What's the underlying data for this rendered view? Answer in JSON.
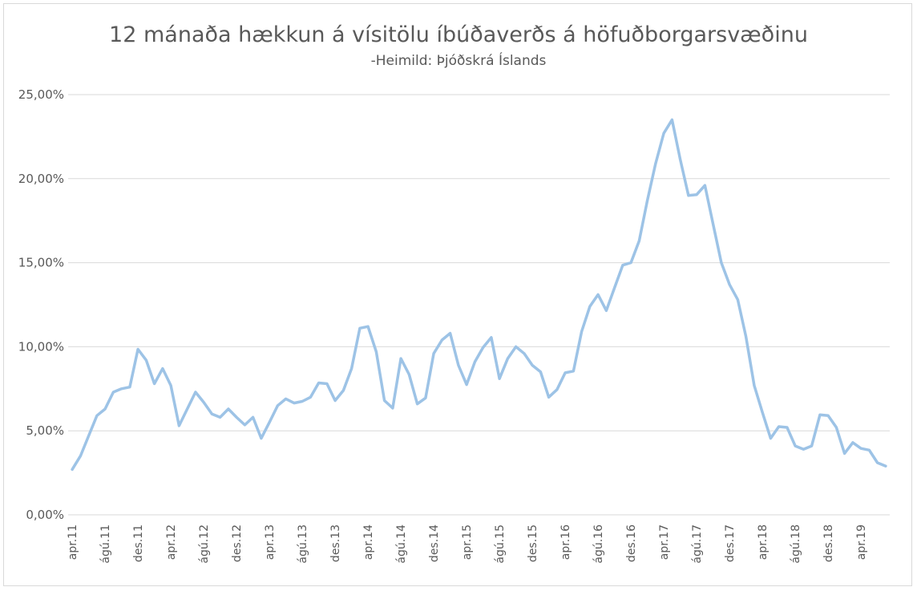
{
  "chart_data": {
    "type": "line",
    "title": "12 mánaða hækkun á vísitölu íbúðaverðs á höfuðborgarsvæðinu",
    "subtitle": "-Heimild: Þjóðskrá Íslands",
    "xlabel": "",
    "ylabel": "",
    "ylim": [
      0,
      25
    ],
    "yticks": [
      0,
      5,
      10,
      15,
      20,
      25
    ],
    "ytick_labels": [
      "0,00%",
      "5,00%",
      "10,00%",
      "15,00%",
      "20,00%",
      "25,00%"
    ],
    "xtick_labels": [
      "apr.11",
      "ágú.11",
      "des.11",
      "apr.12",
      "ágú.12",
      "des.12",
      "apr.13",
      "ágú.13",
      "des.13",
      "apr.14",
      "ágú.14",
      "des.14",
      "apr.15",
      "ágú.15",
      "des.15",
      "apr.16",
      "ágú.16",
      "des.16",
      "apr.17",
      "ágú.17",
      "des.17",
      "apr.18",
      "ágú.18",
      "des.18",
      "apr.19"
    ],
    "grid": true,
    "line_color": "#9dc3e6",
    "series": [
      {
        "values": [
          2.7,
          3.5,
          4.7,
          5.9,
          6.3,
          7.3,
          7.5,
          7.6,
          9.85,
          9.2,
          7.8,
          8.7,
          7.7,
          5.3,
          6.3,
          7.3,
          6.7,
          6.0,
          5.8,
          6.3,
          5.8,
          5.35,
          5.8,
          4.55,
          5.5,
          6.5,
          6.9,
          6.65,
          6.75,
          7.0,
          7.85,
          7.8,
          6.8,
          7.4,
          8.7,
          11.1,
          11.2,
          9.7,
          6.8,
          6.35,
          9.3,
          8.35,
          6.6,
          6.95,
          9.6,
          10.4,
          10.8,
          8.9,
          7.75,
          9.1,
          9.95,
          10.55,
          8.1,
          9.3,
          10.0,
          9.6,
          8.9,
          8.5,
          7.0,
          7.45,
          8.45,
          8.55,
          10.9,
          12.4,
          13.1,
          12.15,
          13.5,
          14.85,
          15.0,
          16.3,
          18.7,
          20.9,
          22.7,
          23.5,
          21.15,
          19.0,
          19.05,
          19.6,
          17.3,
          15.0,
          13.7,
          12.8,
          10.6,
          7.7,
          6.1,
          4.55,
          5.25,
          5.2,
          4.1,
          3.9,
          4.1,
          5.95,
          5.9,
          5.2,
          3.65,
          4.3,
          3.95,
          3.85,
          3.1,
          2.9
        ]
      }
    ]
  }
}
